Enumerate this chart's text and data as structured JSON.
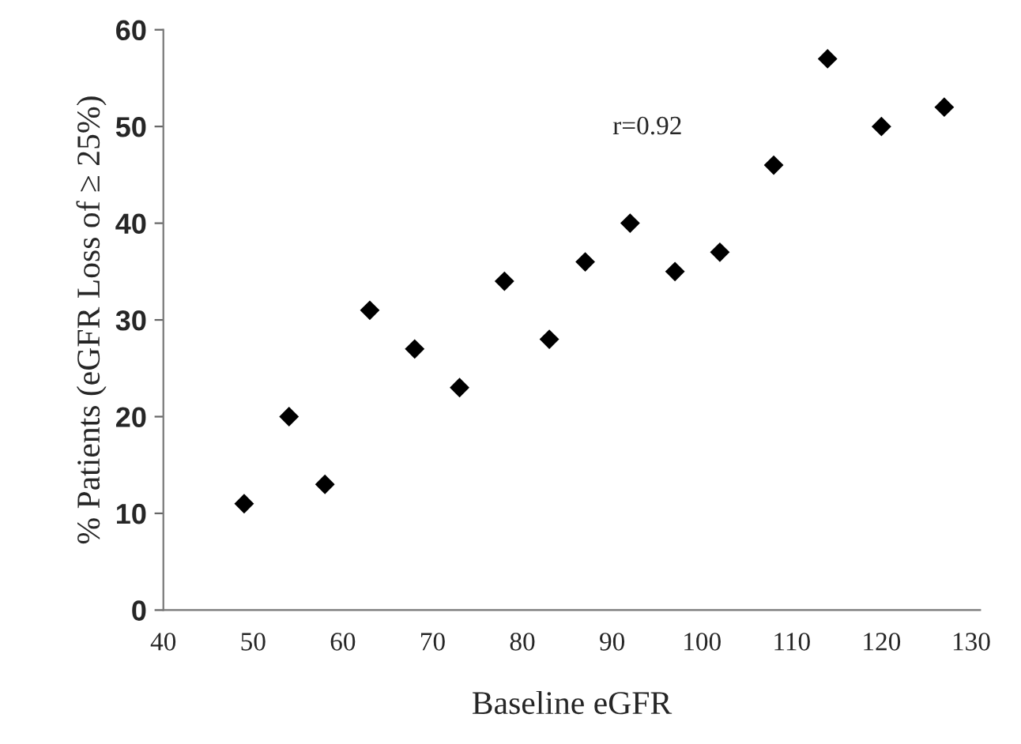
{
  "chart_data": {
    "type": "scatter",
    "xlabel": "Baseline eGFR",
    "ylabel": "% Patients (eGFR Loss of ≥ 25%)",
    "x": [
      49,
      54,
      58,
      63,
      68,
      73,
      78,
      83,
      87,
      92,
      97,
      102,
      108,
      114,
      120,
      127
    ],
    "series": [
      {
        "color": "#000000",
        "values": [
          11,
          20,
          13,
          31,
          27,
          23,
          34,
          28,
          36,
          40,
          35,
          37,
          46,
          57,
          50,
          52
        ]
      }
    ],
    "annotations": [
      "r=0.92"
    ],
    "marker": "diamond",
    "grid": false,
    "legend": false,
    "xlim": [
      40,
      131
    ],
    "xticks": [
      40,
      50,
      60,
      70,
      80,
      90,
      100,
      110,
      120,
      130
    ],
    "ylim": [
      0,
      60
    ],
    "yticks": [
      0,
      10,
      20,
      30,
      40,
      50,
      60
    ]
  }
}
